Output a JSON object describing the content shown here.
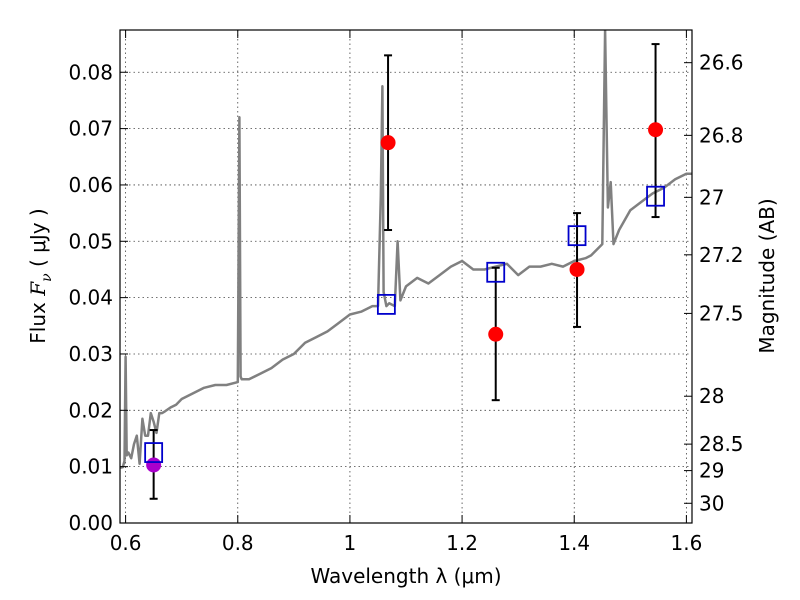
{
  "chart_data": {
    "type": "scatter",
    "xlabel": "Wavelength  λ (μm)",
    "ylabel_prefix": "Flux  ",
    "ylabel_var": "F",
    "ylabel_sub": "ν",
    "ylabel_suffix": "  ( μJy )",
    "y2label": "Magnitude (AB)",
    "xlim": [
      0.59,
      1.61
    ],
    "ylim": [
      0.0,
      0.0875
    ],
    "grid": true,
    "x_ticks": [
      0.6,
      0.8,
      1.0,
      1.2,
      1.4,
      1.6
    ],
    "x_tick_labels": [
      "0.6",
      "0.8",
      "1",
      "1.2",
      "1.4",
      "1.6"
    ],
    "y_ticks": [
      0.0,
      0.01,
      0.02,
      0.03,
      0.04,
      0.05,
      0.06,
      0.07,
      0.08
    ],
    "y_tick_labels": [
      "0.00",
      "0.01",
      "0.02",
      "0.03",
      "0.04",
      "0.05",
      "0.06",
      "0.07",
      "0.08"
    ],
    "mag_ticks": [
      {
        "y": 0.0817,
        "label": "26.6"
      },
      {
        "y": 0.0688,
        "label": "26.8"
      },
      {
        "y": 0.0578,
        "label": "27"
      },
      {
        "y": 0.0476,
        "label": "27.2"
      },
      {
        "y": 0.0372,
        "label": "27.5"
      },
      {
        "y": 0.0225,
        "label": "28"
      },
      {
        "y": 0.014,
        "label": "28.5"
      },
      {
        "y": 0.0093,
        "label": "29"
      },
      {
        "y": 0.0035,
        "label": "30"
      }
    ],
    "series": [
      {
        "kind": "model-spectrum",
        "color": "#808080",
        "x": [
          0.59,
          0.595,
          0.598,
          0.6,
          0.602,
          0.605,
          0.61,
          0.615,
          0.62,
          0.625,
          0.63,
          0.635,
          0.64,
          0.645,
          0.65,
          0.655,
          0.66,
          0.665,
          0.67,
          0.68,
          0.69,
          0.7,
          0.72,
          0.74,
          0.76,
          0.78,
          0.8,
          0.803,
          0.805,
          0.807,
          0.81,
          0.82,
          0.84,
          0.86,
          0.88,
          0.9,
          0.92,
          0.94,
          0.96,
          0.98,
          1.0,
          1.02,
          1.04,
          1.05,
          1.055,
          1.058,
          1.06,
          1.065,
          1.07,
          1.08,
          1.085,
          1.09,
          1.1,
          1.12,
          1.14,
          1.16,
          1.18,
          1.2,
          1.22,
          1.24,
          1.26,
          1.28,
          1.3,
          1.32,
          1.34,
          1.36,
          1.38,
          1.4,
          1.42,
          1.43,
          1.44,
          1.45,
          1.455,
          1.46,
          1.465,
          1.47,
          1.48,
          1.5,
          1.52,
          1.54,
          1.56,
          1.58,
          1.6,
          1.61
        ],
        "y": [
          0.0098,
          0.0099,
          0.011,
          0.0295,
          0.012,
          0.0125,
          0.0115,
          0.014,
          0.0155,
          0.0105,
          0.0185,
          0.0155,
          0.0155,
          0.0195,
          0.018,
          0.016,
          0.0195,
          0.0195,
          0.0198,
          0.0205,
          0.021,
          0.022,
          0.023,
          0.024,
          0.0245,
          0.0245,
          0.025,
          0.072,
          0.026,
          0.0255,
          0.0255,
          0.0255,
          0.0265,
          0.0275,
          0.029,
          0.03,
          0.032,
          0.033,
          0.034,
          0.0355,
          0.037,
          0.0375,
          0.0385,
          0.0385,
          0.058,
          0.0775,
          0.041,
          0.0385,
          0.039,
          0.0385,
          0.05,
          0.0395,
          0.042,
          0.0435,
          0.0425,
          0.044,
          0.0455,
          0.0465,
          0.045,
          0.045,
          0.0455,
          0.046,
          0.044,
          0.0455,
          0.0455,
          0.046,
          0.0455,
          0.0465,
          0.047,
          0.0475,
          0.0485,
          0.0495,
          0.0875,
          0.056,
          0.0605,
          0.0495,
          0.052,
          0.0555,
          0.057,
          0.0585,
          0.0595,
          0.061,
          0.062,
          0.062
        ]
      },
      {
        "kind": "model-photometry",
        "marker": "square",
        "color": "#0000cc",
        "x": [
          0.65,
          1.065,
          1.26,
          1.405,
          1.545
        ],
        "y": [
          0.0125,
          0.0388,
          0.0445,
          0.051,
          0.058
        ]
      },
      {
        "kind": "observed-photometry",
        "marker": "circle",
        "color": "#ff0000",
        "x": [
          0.65,
          1.068,
          1.26,
          1.405,
          1.545
        ],
        "y": [
          0.0103,
          0.0675,
          0.0335,
          0.045,
          0.0698
        ],
        "yerr_low": [
          0.0043,
          0.052,
          0.0218,
          0.0348,
          0.0543
        ],
        "yerr_high": [
          0.0165,
          0.083,
          0.0453,
          0.055,
          0.085
        ],
        "point_colors": [
          "#aa00cc",
          "#ff0000",
          "#ff0000",
          "#ff0000",
          "#ff0000"
        ]
      }
    ]
  }
}
